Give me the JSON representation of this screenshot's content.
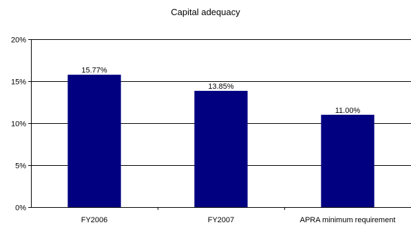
{
  "chart_data": {
    "type": "bar",
    "title": "Capital adequacy",
    "categories": [
      "FY2006",
      "FY2007",
      "APRA minimum requirement"
    ],
    "values": [
      15.77,
      13.85,
      11.0
    ],
    "data_labels": [
      "15.77%",
      "13.85%",
      "11.00%"
    ],
    "xlabel": "",
    "ylabel": "",
    "ylim": [
      0,
      20
    ],
    "y_ticks": [
      0,
      5,
      10,
      15,
      20
    ],
    "y_tick_labels": [
      "0%",
      "5%",
      "10%",
      "15%",
      "20%"
    ],
    "grid": true,
    "legend": "none",
    "bar_color": "#000080"
  }
}
